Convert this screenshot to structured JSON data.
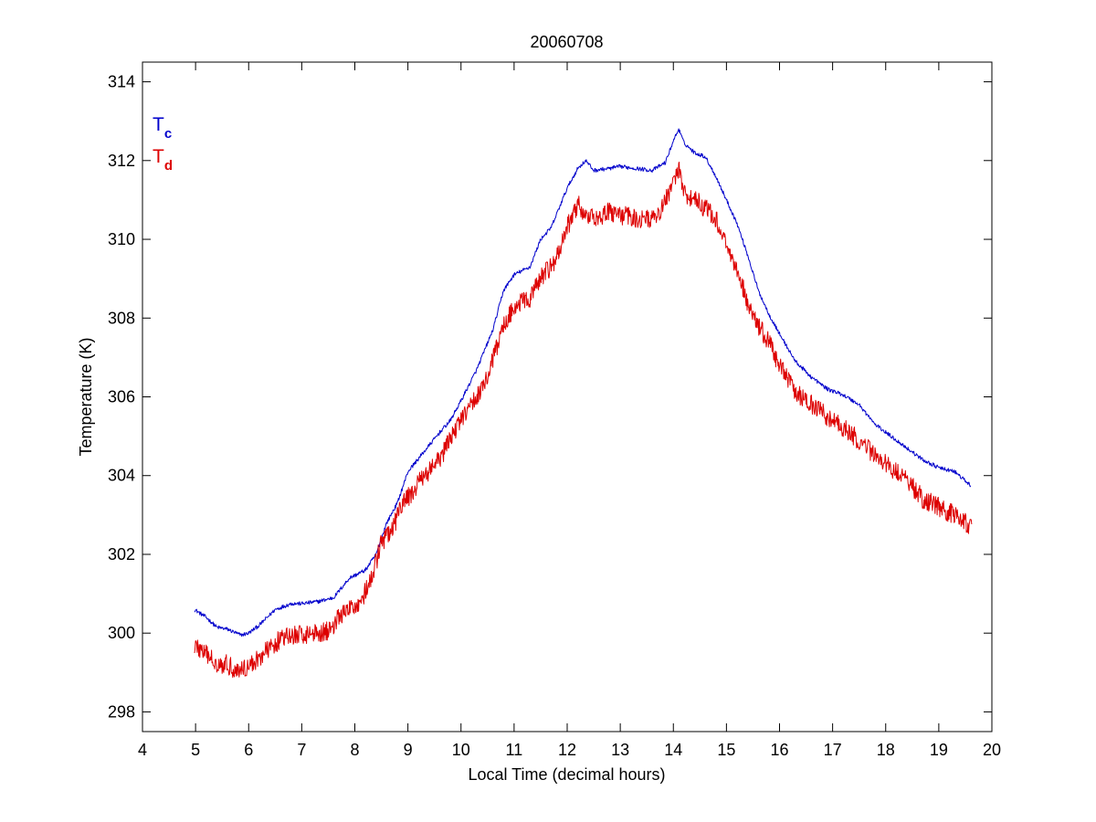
{
  "chart_data": {
    "type": "line",
    "title": "20060708",
    "xlabel": "Local Time (decimal hours)",
    "ylabel": "Temperature (K)",
    "xlim": [
      4,
      20
    ],
    "ylim": [
      297.5,
      314.5
    ],
    "xticks": [
      4,
      5,
      6,
      7,
      8,
      9,
      10,
      11,
      12,
      13,
      14,
      15,
      16,
      17,
      18,
      19,
      20
    ],
    "yticks": [
      298,
      300,
      302,
      304,
      306,
      308,
      310,
      312,
      314
    ],
    "xtick_labels": [
      "4",
      "5",
      "6",
      "7",
      "8",
      "9",
      "10",
      "11",
      "12",
      "13",
      "14",
      "15",
      "16",
      "17",
      "18",
      "19",
      "20"
    ],
    "ytick_labels": [
      "298",
      "300",
      "302",
      "304",
      "306",
      "308",
      "310",
      "312",
      "314"
    ],
    "grid": false,
    "legend_placement": "top-left",
    "series": [
      {
        "name": "Tc",
        "label_main": "T",
        "label_sub": "c",
        "color": "#0000cc",
        "noise": 0.05,
        "x": [
          4.98,
          5.2,
          5.4,
          5.6,
          5.85,
          6.0,
          6.2,
          6.5,
          6.8,
          7.0,
          7.3,
          7.6,
          7.9,
          8.2,
          8.4,
          8.6,
          8.8,
          9.0,
          9.3,
          9.6,
          9.8,
          10.0,
          10.3,
          10.6,
          10.8,
          11.0,
          11.3,
          11.5,
          11.7,
          12.0,
          12.2,
          12.35,
          12.5,
          12.8,
          13.0,
          13.3,
          13.6,
          13.85,
          14.0,
          14.1,
          14.2,
          14.4,
          14.6,
          14.8,
          15.0,
          15.2,
          15.4,
          15.6,
          15.8,
          16.0,
          16.3,
          16.6,
          16.9,
          17.2,
          17.5,
          17.8,
          18.1,
          18.4,
          18.7,
          19.0,
          19.3,
          19.6
        ],
        "y": [
          300.6,
          300.4,
          300.15,
          300.1,
          299.95,
          300.0,
          300.2,
          300.6,
          300.75,
          300.75,
          300.8,
          300.9,
          301.4,
          301.6,
          302.0,
          302.8,
          303.3,
          304.1,
          304.6,
          305.1,
          305.4,
          305.9,
          306.7,
          307.7,
          308.7,
          309.1,
          309.3,
          310.0,
          310.3,
          311.3,
          311.8,
          312.0,
          311.75,
          311.8,
          311.85,
          311.8,
          311.75,
          311.95,
          312.5,
          312.8,
          312.45,
          312.2,
          312.1,
          311.6,
          311.0,
          310.4,
          309.6,
          308.7,
          308.1,
          307.6,
          306.9,
          306.5,
          306.2,
          306.05,
          305.8,
          305.3,
          305.0,
          304.7,
          304.4,
          304.2,
          304.1,
          303.75
        ]
      },
      {
        "name": "Td",
        "label_main": "T",
        "label_sub": "d",
        "color": "#dd0000",
        "noise": 0.25,
        "x": [
          4.98,
          5.2,
          5.4,
          5.6,
          5.8,
          6.0,
          6.3,
          6.6,
          6.9,
          7.2,
          7.5,
          7.7,
          7.9,
          8.1,
          8.3,
          8.5,
          8.7,
          8.9,
          9.1,
          9.3,
          9.6,
          9.9,
          10.2,
          10.5,
          10.8,
          11.0,
          11.3,
          11.5,
          11.8,
          12.0,
          12.2,
          12.4,
          12.6,
          12.8,
          13.0,
          13.3,
          13.6,
          13.8,
          14.0,
          14.1,
          14.2,
          14.4,
          14.6,
          14.8,
          15.0,
          15.2,
          15.4,
          15.6,
          15.8,
          16.0,
          16.3,
          16.6,
          16.9,
          17.2,
          17.5,
          17.8,
          18.1,
          18.4,
          18.7,
          19.0,
          19.3,
          19.62
        ],
        "y": [
          299.7,
          299.45,
          299.25,
          299.2,
          299.05,
          299.15,
          299.5,
          299.85,
          299.95,
          300.0,
          300.05,
          300.4,
          300.6,
          300.8,
          301.3,
          302.3,
          302.6,
          303.3,
          303.6,
          304.0,
          304.4,
          305.2,
          305.8,
          306.5,
          307.8,
          308.3,
          308.5,
          309.0,
          309.5,
          310.3,
          310.9,
          310.5,
          310.6,
          310.7,
          310.6,
          310.55,
          310.5,
          310.8,
          311.5,
          311.8,
          311.2,
          311.0,
          310.8,
          310.5,
          309.9,
          309.2,
          308.4,
          307.8,
          307.4,
          306.8,
          306.1,
          305.8,
          305.5,
          305.2,
          304.9,
          304.5,
          304.2,
          303.9,
          303.4,
          303.2,
          303.0,
          302.7
        ]
      }
    ]
  }
}
